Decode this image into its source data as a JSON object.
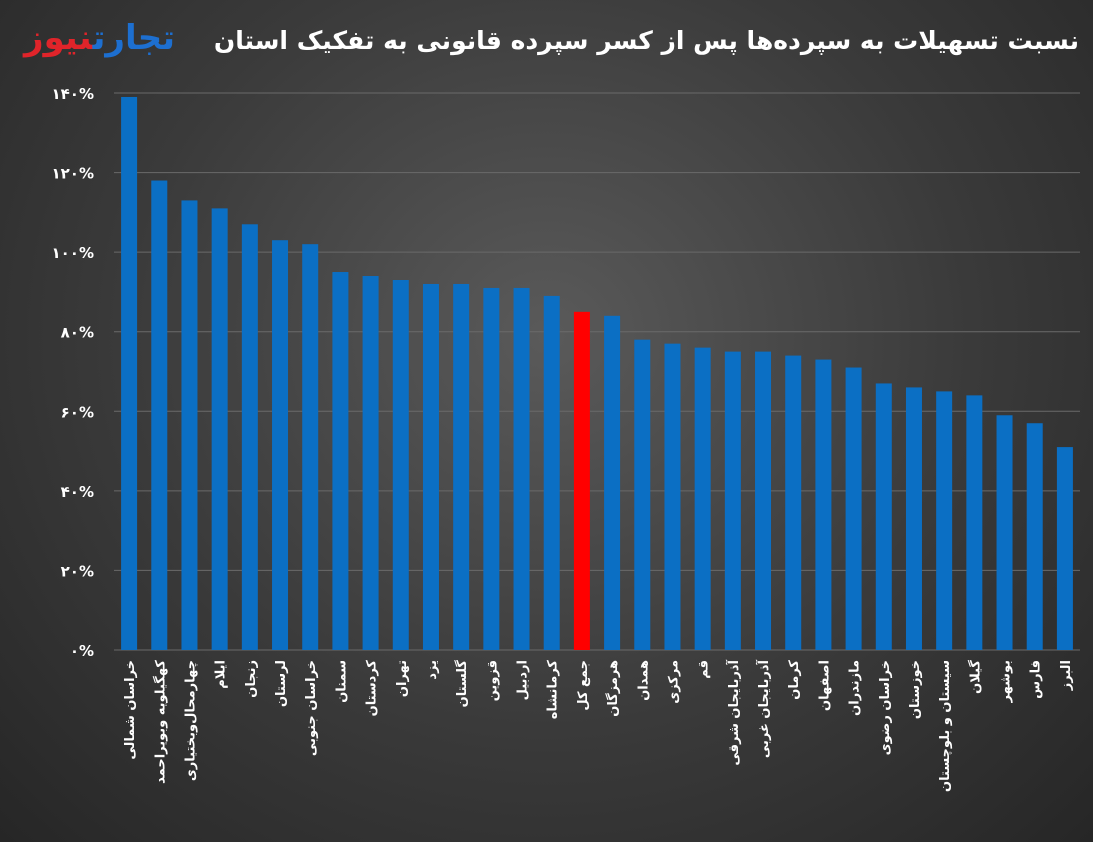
{
  "header": {
    "title": "نسبت تسهیلات به سپرده‌ها پس از کسر سپرده قانونی به تفکیک استان",
    "logo_part1": "تجارت",
    "logo_part2": "نیوز"
  },
  "colors": {
    "bar": "#0b6fc4",
    "highlight": "#ff0000",
    "grid": "#6a6a6a",
    "text": "#ffffff"
  },
  "chart_data": {
    "type": "bar",
    "title": "نسبت تسهیلات به سپرده‌ها پس از کسر سپرده قانونی به تفکیک استان",
    "ylim": [
      0,
      140
    ],
    "yticks": [
      "۰%",
      "۲۰%",
      "۴۰%",
      "۶۰%",
      "۸۰%",
      "۱۰۰%",
      "۱۲۰%",
      "۱۴۰%"
    ],
    "grid": true,
    "highlight_category": "جمع کل",
    "categories": [
      "خراسان شمالی",
      "کهگیلویه وبویراحمد",
      "چهارمحال‌وبختیاری",
      "ایلام",
      "زنجان",
      "لرستان",
      "خراسان جنوبی",
      "سمنان",
      "کردستان",
      "تهران",
      "یزد",
      "گلستان",
      "قزوین",
      "اردبیل",
      "کرمانشاه",
      "جمع کل",
      "هرمزگان",
      "همدان",
      "مرکزی",
      "قم",
      "آذربایجان شرقی",
      "آذربایجان غربی",
      "کرمان",
      "اصفهان",
      "مازندران",
      "خراسان رضوی",
      "خوزستان",
      "سیستان و بلوچستان",
      "گیلان",
      "بوشهر",
      "فارس",
      "البرز"
    ],
    "values": [
      139,
      118,
      113,
      111,
      107,
      103,
      102,
      95,
      94,
      93,
      92,
      92,
      91,
      91,
      89,
      85,
      84,
      78,
      77,
      76,
      75,
      75,
      74,
      73,
      71,
      67,
      66,
      65,
      64,
      59,
      57,
      51
    ]
  }
}
